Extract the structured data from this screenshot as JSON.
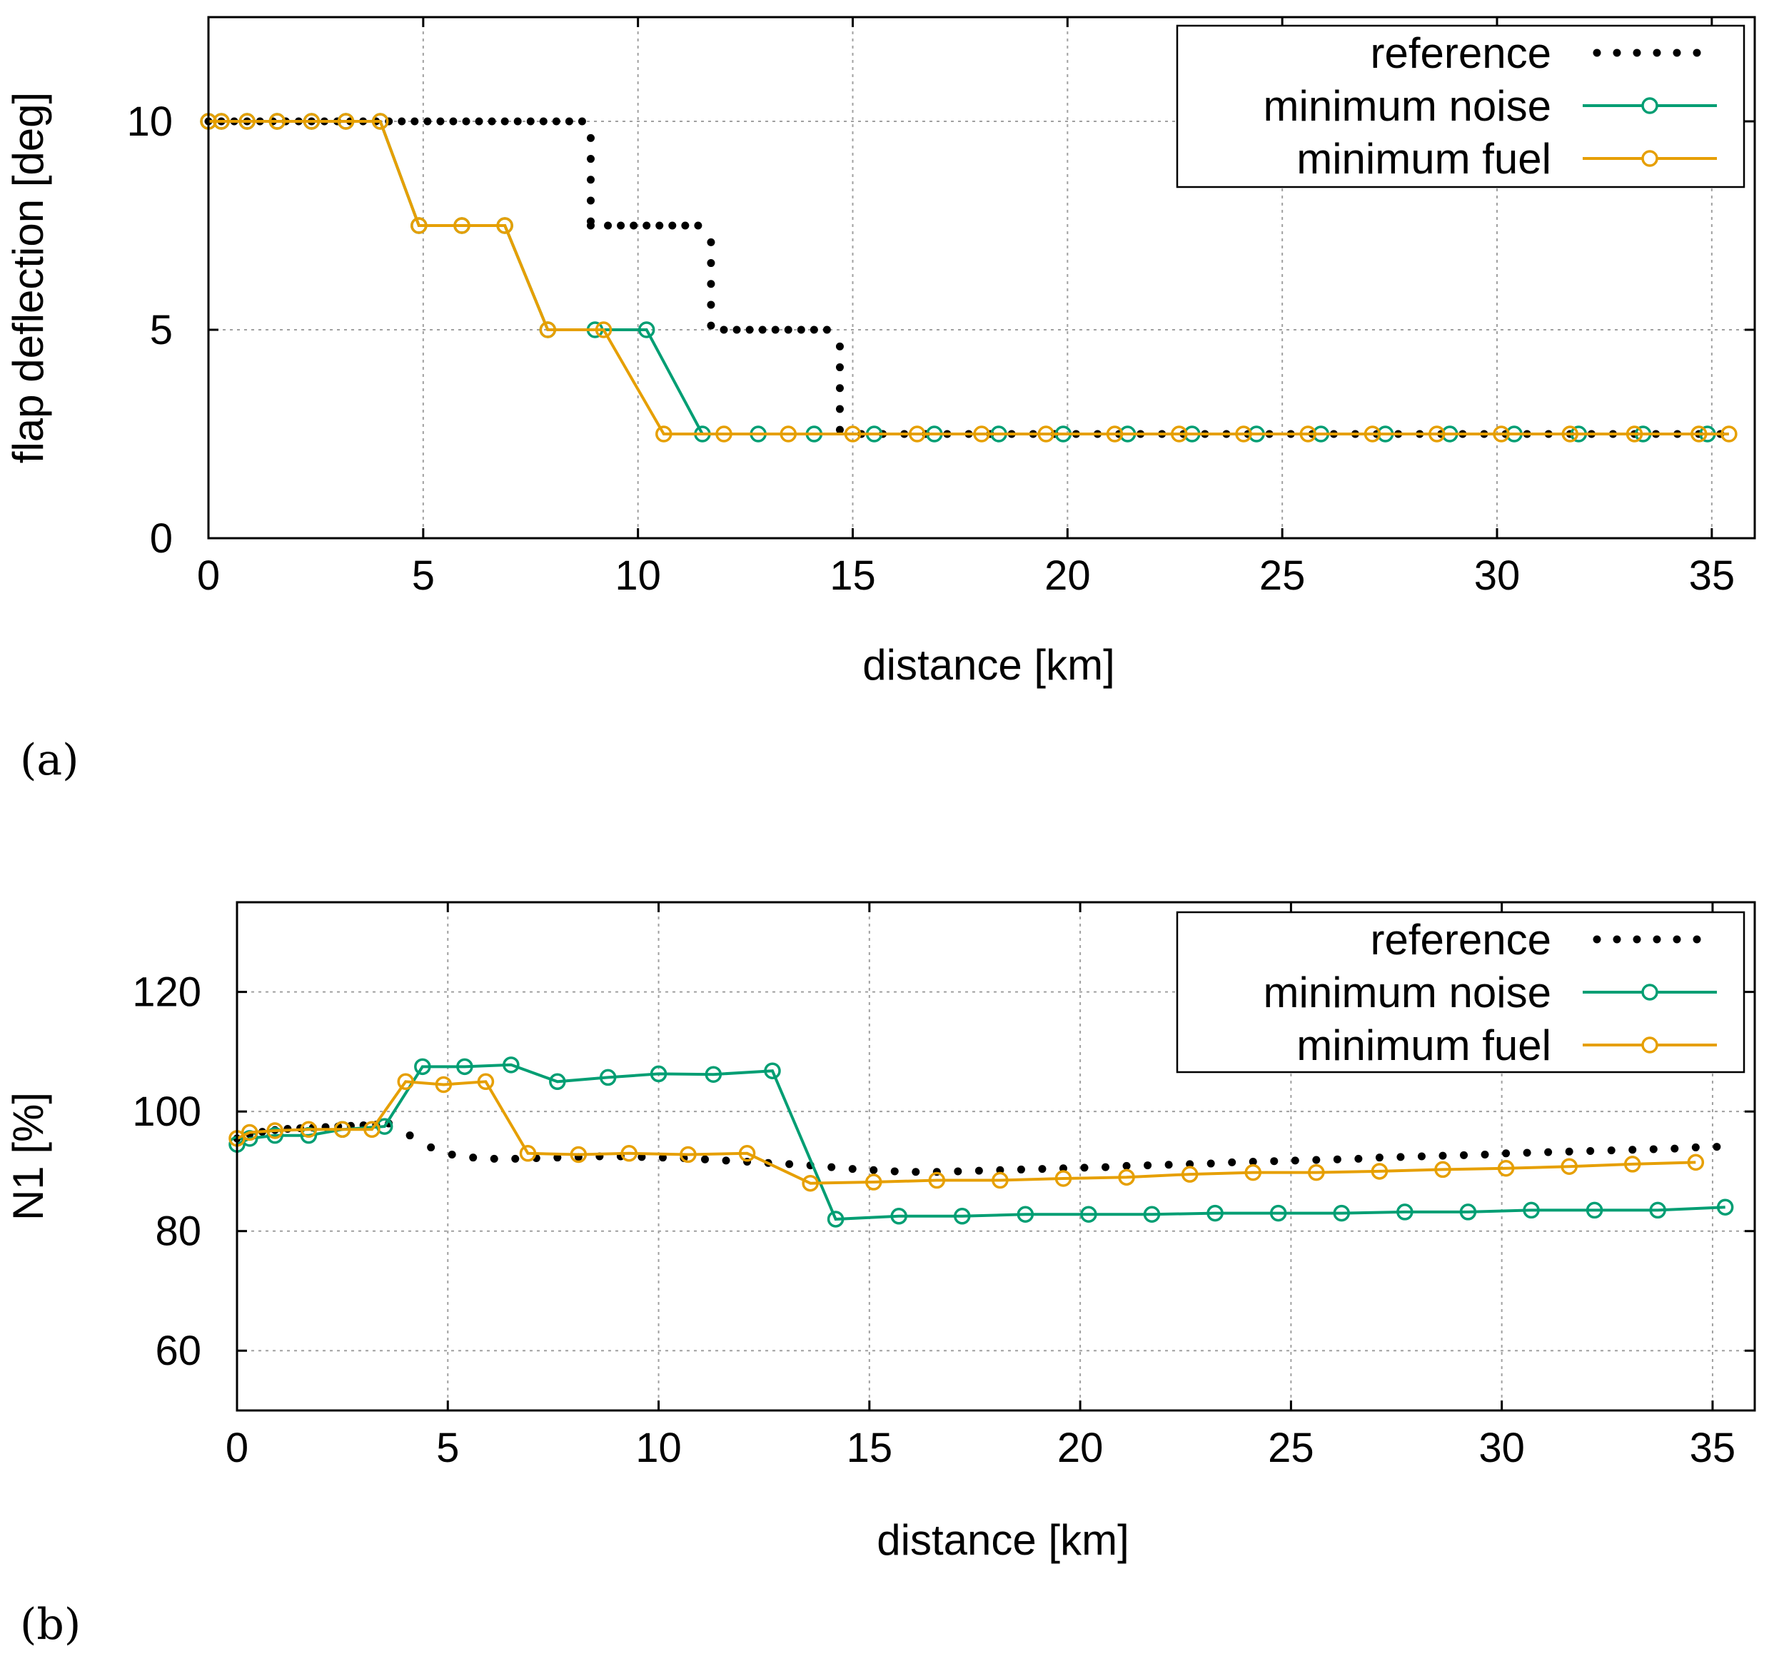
{
  "chart_data": [
    {
      "type": "line",
      "panel_label": "(a)",
      "title": "",
      "xlabel": "distance [km]",
      "ylabel": "flap deflection [deg]",
      "xlim": [
        0,
        36
      ],
      "ylim": [
        0,
        12.5
      ],
      "xticks": [
        0,
        5,
        10,
        15,
        20,
        25,
        30,
        35
      ],
      "yticks": [
        0,
        5,
        10
      ],
      "grid": true,
      "legend_position": "top-right",
      "series": [
        {
          "name": "reference",
          "color": "#000000",
          "style": "dots",
          "x": [
            0,
            0.3,
            0.6,
            0.9,
            1.2,
            1.5,
            1.8,
            2.1,
            2.4,
            2.7,
            3.0,
            3.3,
            3.6,
            3.9,
            4.2,
            4.5,
            4.8,
            5.1,
            5.4,
            5.7,
            6.0,
            6.3,
            6.6,
            6.9,
            7.2,
            7.5,
            7.8,
            8.1,
            8.4,
            8.7,
            8.9,
            8.9,
            8.9,
            8.9,
            8.9,
            8.9,
            9.3,
            9.6,
            9.9,
            10.2,
            10.5,
            10.8,
            11.1,
            11.4,
            11.7,
            11.7,
            11.7,
            11.7,
            11.7,
            12.0,
            12.3,
            12.6,
            12.9,
            13.2,
            13.5,
            13.8,
            14.1,
            14.4,
            14.7,
            14.7,
            14.7,
            14.7,
            14.7,
            15.2,
            15.7,
            16.2,
            16.7,
            17.2,
            17.7,
            18.2,
            18.7,
            19.2,
            19.7,
            20.2,
            20.7,
            21.2,
            21.7,
            22.2,
            22.7,
            23.2,
            23.7,
            24.2,
            24.7,
            25.2,
            25.7,
            26.2,
            26.7,
            27.2,
            27.7,
            28.2,
            28.7,
            29.2,
            29.7,
            30.2,
            30.7,
            31.2,
            31.7,
            32.2,
            32.7,
            33.2,
            33.7,
            34.2,
            34.7,
            35.2
          ],
          "y": [
            10,
            10,
            10,
            10,
            10,
            10,
            10,
            10,
            10,
            10,
            10,
            10,
            10,
            10,
            10,
            10,
            10,
            10,
            10,
            10,
            10,
            10,
            10,
            10,
            10,
            10,
            10,
            10,
            10,
            10,
            9.6,
            9.1,
            8.6,
            8.1,
            7.6,
            7.5,
            7.5,
            7.5,
            7.5,
            7.5,
            7.5,
            7.5,
            7.5,
            7.5,
            7.1,
            6.6,
            6.1,
            5.6,
            5.1,
            5,
            5,
            5,
            5,
            5,
            5,
            5,
            5,
            5,
            4.6,
            4.1,
            3.6,
            3.1,
            2.6,
            2.5,
            2.5,
            2.5,
            2.5,
            2.5,
            2.5,
            2.5,
            2.5,
            2.5,
            2.5,
            2.5,
            2.5,
            2.5,
            2.5,
            2.5,
            2.5,
            2.5,
            2.5,
            2.5,
            2.5,
            2.5,
            2.5,
            2.5,
            2.5,
            2.5,
            2.5,
            2.5,
            2.5,
            2.5,
            2.5,
            2.5,
            2.5,
            2.5,
            2.5,
            2.5,
            2.5,
            2.5,
            2.5,
            2.5,
            2.5,
            2.5
          ]
        },
        {
          "name": "minimum noise",
          "color": "#009e73",
          "style": "line-circles",
          "x": [
            0,
            0.3,
            0.9,
            1.6,
            2.4,
            3.2,
            4.0,
            4.9,
            5.9,
            6.9,
            7.9,
            9.0,
            10.2,
            11.5,
            12.8,
            14.1,
            15.5,
            16.9,
            18.4,
            19.9,
            21.4,
            22.9,
            24.4,
            25.9,
            27.4,
            28.9,
            30.4,
            31.9,
            33.4,
            34.9
          ],
          "y": [
            10,
            10,
            10,
            10,
            10,
            10,
            10,
            7.5,
            7.5,
            7.5,
            5,
            5,
            5,
            2.5,
            2.5,
            2.5,
            2.5,
            2.5,
            2.5,
            2.5,
            2.5,
            2.5,
            2.5,
            2.5,
            2.5,
            2.5,
            2.5,
            2.5,
            2.5,
            2.5
          ]
        },
        {
          "name": "minimum fuel",
          "color": "#e69f00",
          "style": "line-circles",
          "x": [
            0,
            0.3,
            0.9,
            1.6,
            2.4,
            3.2,
            4.0,
            4.9,
            5.9,
            6.9,
            7.9,
            9.2,
            10.6,
            12.0,
            13.5,
            15.0,
            16.5,
            18.0,
            19.5,
            21.1,
            22.6,
            24.1,
            25.6,
            27.1,
            28.6,
            30.1,
            31.7,
            33.2,
            34.7,
            35.4
          ],
          "y": [
            10,
            10,
            10,
            10,
            10,
            10,
            10,
            7.5,
            7.5,
            7.5,
            5,
            5,
            2.5,
            2.5,
            2.5,
            2.5,
            2.5,
            2.5,
            2.5,
            2.5,
            2.5,
            2.5,
            2.5,
            2.5,
            2.5,
            2.5,
            2.5,
            2.5,
            2.5,
            2.5
          ]
        }
      ]
    },
    {
      "type": "line",
      "panel_label": "(b)",
      "title": "",
      "xlabel": "distance [km]",
      "ylabel": "N1 [%]",
      "xlim": [
        0,
        36
      ],
      "ylim": [
        50,
        135
      ],
      "xticks": [
        0,
        5,
        10,
        15,
        20,
        25,
        30,
        35
      ],
      "yticks": [
        60,
        80,
        100,
        120
      ],
      "grid": true,
      "legend_position": "top-right",
      "series": [
        {
          "name": "reference",
          "color": "#000000",
          "style": "dots",
          "x": [
            0,
            0.3,
            0.6,
            0.9,
            1.2,
            1.5,
            1.8,
            2.1,
            2.4,
            2.7,
            3.0,
            3.3,
            3.6,
            4.1,
            4.6,
            5.1,
            5.6,
            6.1,
            6.6,
            7.1,
            7.6,
            8.1,
            8.6,
            9.1,
            9.6,
            10.1,
            10.6,
            11.1,
            11.6,
            12.1,
            12.6,
            13.1,
            13.6,
            14.1,
            14.6,
            15.1,
            15.6,
            16.1,
            16.6,
            17.1,
            17.6,
            18.1,
            18.6,
            19.1,
            19.6,
            20.1,
            20.6,
            21.1,
            21.6,
            22.1,
            22.6,
            23.1,
            23.6,
            24.1,
            24.6,
            25.1,
            25.6,
            26.1,
            26.6,
            27.1,
            27.6,
            28.1,
            28.6,
            29.1,
            29.6,
            30.1,
            30.6,
            31.1,
            31.6,
            32.1,
            32.6,
            33.1,
            33.6,
            34.1,
            34.6,
            35.1
          ],
          "y": [
            95.5,
            96.2,
            96.6,
            96.9,
            97.1,
            97.2,
            97.3,
            97.4,
            97.5,
            97.6,
            97.7,
            97.8,
            98.0,
            96.0,
            94.0,
            92.8,
            92.3,
            92.1,
            92.1,
            92.2,
            92.3,
            92.4,
            92.5,
            92.5,
            92.4,
            92.3,
            92.2,
            92.0,
            91.8,
            91.6,
            91.4,
            91.2,
            91.0,
            90.7,
            90.4,
            90.2,
            90.0,
            89.9,
            89.9,
            90.0,
            90.1,
            90.2,
            90.3,
            90.4,
            90.5,
            90.6,
            90.7,
            90.9,
            91.0,
            91.1,
            91.2,
            91.3,
            91.5,
            91.6,
            91.7,
            91.8,
            91.9,
            92.0,
            92.1,
            92.3,
            92.4,
            92.5,
            92.6,
            92.7,
            92.8,
            93.0,
            93.1,
            93.2,
            93.3,
            93.4,
            93.5,
            93.6,
            93.7,
            93.8,
            94.0,
            94.1
          ]
        },
        {
          "name": "minimum noise",
          "color": "#009e73",
          "style": "line-circles",
          "x": [
            0,
            0.3,
            0.9,
            1.7,
            2.5,
            3.5,
            4.4,
            5.4,
            6.5,
            7.6,
            8.8,
            10.0,
            11.3,
            12.7,
            14.2,
            15.7,
            17.2,
            18.7,
            20.2,
            21.7,
            23.2,
            24.7,
            26.2,
            27.7,
            29.2,
            30.7,
            32.2,
            33.7,
            35.3
          ],
          "y": [
            94.5,
            95.5,
            96.0,
            96.0,
            97.0,
            97.5,
            107.5,
            107.5,
            107.8,
            105.0,
            105.7,
            106.3,
            106.2,
            106.8,
            82.0,
            82.5,
            82.5,
            82.8,
            82.8,
            82.8,
            83.0,
            83.0,
            83.0,
            83.2,
            83.2,
            83.5,
            83.5,
            83.5,
            84.0
          ]
        },
        {
          "name": "minimum fuel",
          "color": "#e69f00",
          "style": "line-circles",
          "x": [
            0,
            0.3,
            0.9,
            1.7,
            2.5,
            3.2,
            4.0,
            4.9,
            5.9,
            6.9,
            8.1,
            9.3,
            10.7,
            12.1,
            13.6,
            15.1,
            16.6,
            18.1,
            19.6,
            21.1,
            22.6,
            24.1,
            25.6,
            27.1,
            28.6,
            30.1,
            31.6,
            33.1,
            34.6
          ],
          "y": [
            95.5,
            96.5,
            96.8,
            97.0,
            97.0,
            97.0,
            105.0,
            104.5,
            105.0,
            93.0,
            92.8,
            93.0,
            92.8,
            93.0,
            88.0,
            88.2,
            88.5,
            88.5,
            88.8,
            89.0,
            89.5,
            89.8,
            89.8,
            90.0,
            90.3,
            90.5,
            90.8,
            91.2,
            91.5
          ]
        }
      ]
    }
  ]
}
